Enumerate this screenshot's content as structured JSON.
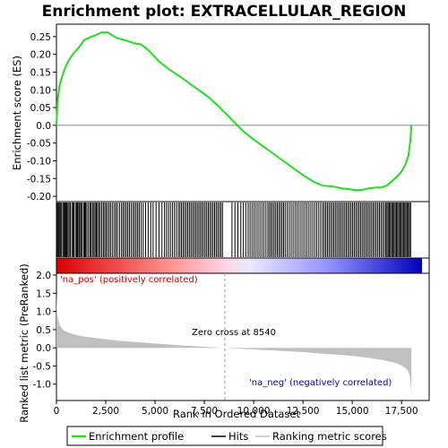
{
  "chart_data": [
    {
      "type": "line",
      "title": "Enrichment plot: EXTRACELLULAR_REGION",
      "ylabel": "Enrichment score (ES)",
      "ylim": [
        -0.215,
        0.285
      ],
      "xlim": [
        0,
        18900
      ],
      "yticks": [
        "0.25",
        "0.20",
        "0.15",
        "0.10",
        "0.05",
        "0.0",
        "-0.05",
        "-0.10",
        "-0.15",
        "-0.20"
      ],
      "ytick_values": [
        0.25,
        0.2,
        0.15,
        0.1,
        0.05,
        0.0,
        -0.05,
        -0.1,
        -0.15,
        -0.2
      ],
      "grid": false,
      "series": [
        {
          "name": "Enrichment profile",
          "color": "#22dd22",
          "x": [
            0,
            60,
            150,
            300,
            500,
            700,
            900,
            1150,
            1400,
            1700,
            2000,
            2300,
            2600,
            2800,
            3100,
            3500,
            3900,
            4300,
            4700,
            5200,
            5700,
            6200,
            6700,
            7200,
            7700,
            8200,
            8540,
            9000,
            9500,
            10000,
            10500,
            11000,
            11500,
            12000,
            12500,
            13000,
            13500,
            14000,
            14500,
            14800,
            15200,
            15500,
            15800,
            16200,
            16500,
            16800,
            17000,
            17300,
            17500,
            17700,
            17850,
            17950,
            18000
          ],
          "y": [
            0.0,
            0.07,
            0.11,
            0.14,
            0.17,
            0.19,
            0.205,
            0.22,
            0.24,
            0.248,
            0.255,
            0.262,
            0.262,
            0.255,
            0.245,
            0.24,
            0.232,
            0.228,
            0.21,
            0.18,
            0.158,
            0.14,
            0.12,
            0.1,
            0.08,
            0.055,
            0.036,
            0.01,
            -0.018,
            -0.04,
            -0.06,
            -0.08,
            -0.1,
            -0.12,
            -0.14,
            -0.158,
            -0.17,
            -0.172,
            -0.178,
            -0.18,
            -0.183,
            -0.182,
            -0.178,
            -0.175,
            -0.175,
            -0.168,
            -0.158,
            -0.143,
            -0.13,
            -0.11,
            -0.085,
            -0.04,
            0.0
          ]
        }
      ]
    },
    {
      "type": "scatter",
      "label": "Hits",
      "color": "#000000",
      "hit_positions": [
        20,
        60,
        110,
        150,
        210,
        260,
        330,
        380,
        430,
        480,
        520,
        580,
        640,
        700,
        780,
        840,
        880,
        960,
        1020,
        1070,
        1130,
        1180,
        1240,
        1300,
        1380,
        1430,
        1480,
        1540,
        1620,
        1700,
        1760,
        1830,
        1900,
        1960,
        2020,
        2080,
        2150,
        2220,
        2300,
        2380,
        2450,
        2520,
        2600,
        2680,
        2760,
        2850,
        2940,
        3020,
        3100,
        3200,
        3300,
        3380,
        3460,
        3540,
        3620,
        3700,
        3790,
        3880,
        3960,
        4040,
        4120,
        4200,
        4300,
        4400,
        4520,
        4650,
        4780,
        4900,
        5050,
        5200,
        5350,
        5480,
        5580,
        5680,
        5780,
        5880,
        5980,
        6080,
        6180,
        6260,
        6340,
        6420,
        6500,
        6580,
        6660,
        6740,
        6820,
        6900,
        6980,
        7060,
        7140,
        7220,
        7300,
        7380,
        7460,
        7540,
        7620,
        7700,
        7780,
        7860,
        7940,
        8020,
        8100,
        8180,
        8260,
        8340,
        8420,
        8900,
        9050,
        9200,
        9350,
        9480,
        9600,
        9720,
        9820,
        9920,
        10020,
        10120,
        10220,
        10320,
        10420,
        10520,
        10620,
        10720,
        10800,
        10880,
        10960,
        11040,
        11120,
        11200,
        11280,
        11360,
        11440,
        11520,
        11600,
        11700,
        11800,
        11900,
        12000,
        12100,
        12200,
        12300,
        12400,
        12500,
        12600,
        12700,
        12800,
        12900,
        13000,
        13100,
        13200,
        13300,
        13400,
        13500,
        13580,
        13660,
        13740,
        13820,
        13900,
        13980,
        14060,
        14140,
        14220,
        14300,
        14380,
        14460,
        14540,
        14620,
        14700,
        14780,
        14860,
        14940,
        15020,
        15100,
        15180,
        15260,
        15340,
        15420,
        15500,
        15580,
        15660,
        15740,
        15820,
        15900,
        15980,
        16060,
        16140,
        16220,
        16300,
        16380,
        16460,
        16540,
        16620,
        16700,
        16760,
        16820,
        16880,
        16940,
        17000,
        17060,
        17120,
        17180,
        17240,
        17300,
        17360,
        17420,
        17480,
        17540,
        17600,
        17660,
        17720,
        17780,
        17840,
        17900,
        17960
      ]
    },
    {
      "type": "area",
      "ylabel": "Ranked list metric (PreRanked)",
      "xlabel": "Rank in Ordered Dataset",
      "ylim": [
        -1.45,
        2.05
      ],
      "xlim": [
        0,
        18900
      ],
      "xticks": [
        "0",
        "2,500",
        "5,000",
        "7,500",
        "10,000",
        "12,500",
        "15,000",
        "17,500"
      ],
      "xtick_values": [
        0,
        2500,
        5000,
        7500,
        10000,
        12500,
        15000,
        17500
      ],
      "yticks": [
        "2.0",
        "1.5",
        "1.0",
        "0.5",
        "0.0",
        "-0.5",
        "-1.0"
      ],
      "ytick_values": [
        2.0,
        1.5,
        1.0,
        0.5,
        0.0,
        -0.5,
        -1.0
      ],
      "series": [
        {
          "name": "Ranking metric scores",
          "color": "#c0c0c0",
          "x": [
            0,
            30,
            80,
            150,
            250,
            400,
            600,
            900,
            1300,
            1800,
            2500,
            3500,
            4500,
            5500,
            6500,
            7500,
            8540,
            9500,
            10500,
            11500,
            12500,
            13500,
            14500,
            15300,
            16000,
            16500,
            17000,
            17300,
            17550,
            17750,
            17850,
            17920,
            17970,
            18000
          ],
          "y": [
            1.5,
            1.0,
            0.8,
            0.65,
            0.55,
            0.47,
            0.42,
            0.37,
            0.32,
            0.28,
            0.23,
            0.18,
            0.14,
            0.1,
            0.06,
            0.03,
            0.0,
            -0.03,
            -0.06,
            -0.09,
            -0.12,
            -0.16,
            -0.2,
            -0.24,
            -0.29,
            -0.33,
            -0.39,
            -0.44,
            -0.5,
            -0.58,
            -0.66,
            -0.78,
            -1.0,
            -1.35
          ]
        }
      ],
      "zero_cross": 8540,
      "annotations": {
        "pos": "'na_pos' (positively correlated)",
        "neg": "'na_neg' (negatively correlated)",
        "zero": "Zero cross at 8540",
        "pos_color": "#cc0000",
        "neg_color": "#0000cc"
      }
    }
  ],
  "legend": {
    "placement": "bottom",
    "items": [
      {
        "label": "Enrichment profile",
        "color": "#22dd22",
        "kind": "line"
      },
      {
        "label": "Hits",
        "color": "#000000",
        "kind": "line"
      },
      {
        "label": "Ranking metric scores",
        "color": "#c0c0c0",
        "kind": "line"
      }
    ]
  }
}
